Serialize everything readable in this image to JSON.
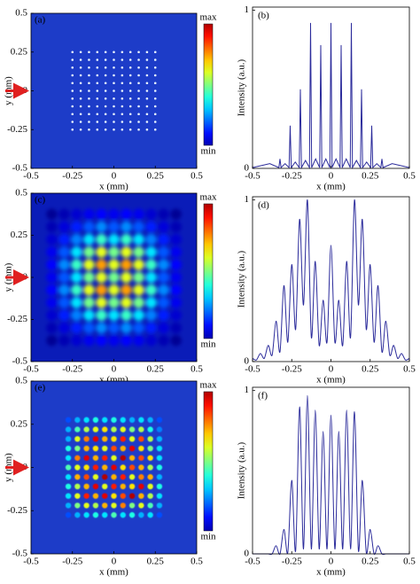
{
  "chart_data": [
    {
      "type": "heatmap",
      "label": "(a)",
      "xlabel": "x (mm)",
      "ylabel": "y (mm)",
      "xlim": [
        -0.5,
        0.5
      ],
      "ylim": [
        -0.5,
        0.5
      ],
      "xticks": [
        -0.5,
        -0.25,
        0,
        0.25,
        0.5
      ],
      "yticks": [
        -0.5,
        -0.25,
        0,
        0.25,
        0.5
      ],
      "colorbar_labels": [
        "max",
        "min"
      ],
      "background": "#1d3cc8",
      "x": [
        -0.25,
        -0.2,
        -0.15,
        -0.1,
        -0.05,
        0,
        0.05,
        0.1,
        0.15,
        0.2,
        0.25
      ],
      "y": [
        -0.25,
        -0.2,
        -0.15,
        -0.1,
        -0.05,
        0,
        0.05,
        0.1,
        0.15,
        0.2,
        0.25
      ],
      "z": [
        [
          0.35,
          0.35,
          0.35,
          0.35,
          0.35,
          0.35,
          0.35,
          0.35,
          0.35,
          0.35,
          0.35
        ],
        [
          0.35,
          0.5,
          0.5,
          0.5,
          0.5,
          0.5,
          0.5,
          0.5,
          0.5,
          0.5,
          0.35
        ],
        [
          0.35,
          0.5,
          0.5,
          0.5,
          0.5,
          0.5,
          0.5,
          0.5,
          0.5,
          0.5,
          0.35
        ],
        [
          0.35,
          0.5,
          0.5,
          0.5,
          0.5,
          0.5,
          0.5,
          0.5,
          0.5,
          0.5,
          0.35
        ],
        [
          0.35,
          0.5,
          0.5,
          0.5,
          0.5,
          0.5,
          0.5,
          0.5,
          0.5,
          0.5,
          0.35
        ],
        [
          0.35,
          0.5,
          0.5,
          0.5,
          0.5,
          0.5,
          0.5,
          0.5,
          0.5,
          0.5,
          0.35
        ],
        [
          0.35,
          0.5,
          0.5,
          0.5,
          0.5,
          0.5,
          0.5,
          0.5,
          0.5,
          0.5,
          0.35
        ],
        [
          0.35,
          0.5,
          0.5,
          0.5,
          0.5,
          0.5,
          0.5,
          0.5,
          0.5,
          0.5,
          0.35
        ],
        [
          0.35,
          0.5,
          0.5,
          0.5,
          0.5,
          0.5,
          0.5,
          0.5,
          0.5,
          0.5,
          0.35
        ],
        [
          0.35,
          0.5,
          0.5,
          0.5,
          0.5,
          0.5,
          0.5,
          0.5,
          0.5,
          0.5,
          0.35
        ],
        [
          0.35,
          0.35,
          0.35,
          0.35,
          0.35,
          0.35,
          0.35,
          0.35,
          0.35,
          0.35,
          0.35
        ]
      ]
    },
    {
      "type": "line",
      "label": "(b)",
      "xlabel": "x (mm)",
      "ylabel": "Intensity (a.u.)",
      "xlim": [
        -0.5,
        0.5
      ],
      "ylim": [
        0,
        1.02
      ],
      "xticks": [
        -0.5,
        -0.25,
        0,
        0.25,
        0.5
      ],
      "yticks": [
        0,
        1
      ],
      "color": "#2b2b9b",
      "x": [
        -0.5,
        -0.39,
        -0.332,
        -0.325,
        -0.318,
        -0.2925,
        -0.267,
        -0.26,
        -0.253,
        -0.2275,
        -0.202,
        -0.195,
        -0.188,
        -0.1625,
        -0.137,
        -0.13,
        -0.123,
        -0.0975,
        -0.072,
        -0.065,
        -0.058,
        -0.0325,
        -0.007,
        0,
        0.007,
        0.0325,
        0.058,
        0.065,
        0.072,
        0.0975,
        0.123,
        0.13,
        0.137,
        0.1625,
        0.188,
        0.195,
        0.202,
        0.2275,
        0.253,
        0.26,
        0.267,
        0.2925,
        0.318,
        0.325,
        0.332,
        0.39,
        0.5
      ],
      "values": [
        0.005,
        0.03,
        0.005,
        0.06,
        0.005,
        0.03,
        0.005,
        0.27,
        0.005,
        0.04,
        0.005,
        0.5,
        0.005,
        0.05,
        0.005,
        0.92,
        0.005,
        0.06,
        0.005,
        0.78,
        0.005,
        0.06,
        0.005,
        0.92,
        0.005,
        0.06,
        0.005,
        0.78,
        0.005,
        0.06,
        0.005,
        0.92,
        0.005,
        0.05,
        0.005,
        0.5,
        0.005,
        0.04,
        0.005,
        0.27,
        0.005,
        0.03,
        0.005,
        0.06,
        0.005,
        0.03,
        0.005
      ]
    },
    {
      "type": "heatmap",
      "label": "(c)",
      "xlabel": "x (mm)",
      "ylabel": "y (mm)",
      "xlim": [
        -0.5,
        0.5
      ],
      "ylim": [
        -0.5,
        0.5
      ],
      "xticks": [
        -0.5,
        -0.25,
        0,
        0.25,
        0.5
      ],
      "yticks": [
        -0.5,
        -0.25,
        0,
        0.25,
        0.5
      ],
      "colorbar_labels": [
        "max",
        "min"
      ],
      "background": "#0a1cb8",
      "x": [
        -0.375,
        -0.3,
        -0.225,
        -0.15,
        -0.075,
        0,
        0.075,
        0.15,
        0.225,
        0.3,
        0.375
      ],
      "y": [
        -0.375,
        -0.3,
        -0.225,
        -0.15,
        -0.075,
        0,
        0.075,
        0.15,
        0.225,
        0.3,
        0.375
      ],
      "z": [
        [
          0.02,
          0.05,
          0.08,
          0.11,
          0.13,
          0.11,
          0.13,
          0.11,
          0.08,
          0.05,
          0.02
        ],
        [
          0.05,
          0.09,
          0.15,
          0.21,
          0.26,
          0.21,
          0.26,
          0.21,
          0.15,
          0.09,
          0.05
        ],
        [
          0.08,
          0.15,
          0.25,
          0.35,
          0.43,
          0.35,
          0.43,
          0.35,
          0.25,
          0.15,
          0.08
        ],
        [
          0.11,
          0.21,
          0.35,
          0.49,
          0.6,
          0.49,
          0.6,
          0.49,
          0.35,
          0.21,
          0.11
        ],
        [
          0.13,
          0.26,
          0.43,
          0.6,
          0.72,
          0.6,
          0.72,
          0.6,
          0.43,
          0.26,
          0.13
        ],
        [
          0.11,
          0.21,
          0.35,
          0.49,
          0.6,
          0.49,
          0.6,
          0.49,
          0.35,
          0.21,
          0.11
        ],
        [
          0.13,
          0.26,
          0.43,
          0.6,
          0.72,
          0.6,
          0.72,
          0.6,
          0.43,
          0.26,
          0.13
        ],
        [
          0.11,
          0.21,
          0.35,
          0.49,
          0.6,
          0.49,
          0.6,
          0.49,
          0.35,
          0.21,
          0.11
        ],
        [
          0.08,
          0.15,
          0.25,
          0.35,
          0.43,
          0.35,
          0.43,
          0.35,
          0.25,
          0.15,
          0.08
        ],
        [
          0.05,
          0.09,
          0.15,
          0.21,
          0.26,
          0.21,
          0.26,
          0.21,
          0.15,
          0.09,
          0.05
        ],
        [
          0.02,
          0.05,
          0.08,
          0.11,
          0.13,
          0.11,
          0.13,
          0.11,
          0.08,
          0.05,
          0.02
        ]
      ]
    },
    {
      "type": "line",
      "label": "(d)",
      "xlabel": "x (mm)",
      "ylabel": "Intensity (a.u.)",
      "xlim": [
        -0.5,
        0.5
      ],
      "ylim": [
        0,
        1.02
      ],
      "xticks": [
        -0.5,
        -0.25,
        0,
        0.25,
        0.5
      ],
      "yticks": [
        0,
        1
      ],
      "color": "#2b2b9b",
      "x": [
        -0.5,
        -0.475,
        -0.45,
        -0.425,
        -0.4,
        -0.375,
        -0.35,
        -0.325,
        -0.3,
        -0.275,
        -0.25,
        -0.225,
        -0.2,
        -0.175,
        -0.15,
        -0.125,
        -0.1,
        -0.075,
        -0.05,
        -0.025,
        0,
        0.025,
        0.05,
        0.075,
        0.1,
        0.125,
        0.15,
        0.175,
        0.2,
        0.225,
        0.25,
        0.275,
        0.3,
        0.325,
        0.35,
        0.375,
        0.4,
        0.425,
        0.45,
        0.475,
        0.5
      ],
      "values": [
        0.02,
        0.01,
        0.05,
        0.02,
        0.1,
        0.04,
        0.25,
        0.06,
        0.47,
        0.12,
        0.6,
        0.2,
        0.88,
        0.35,
        1.0,
        0.15,
        0.62,
        0.1,
        0.38,
        0.12,
        0.72,
        0.12,
        0.38,
        0.1,
        0.62,
        0.15,
        1.0,
        0.35,
        0.88,
        0.2,
        0.6,
        0.12,
        0.47,
        0.06,
        0.25,
        0.04,
        0.1,
        0.02,
        0.05,
        0.01,
        0.02
      ]
    },
    {
      "type": "heatmap",
      "label": "(e)",
      "xlabel": "x (mm)",
      "ylabel": "y (mm)",
      "xlim": [
        -0.5,
        0.5
      ],
      "ylim": [
        -0.5,
        0.5
      ],
      "xticks": [
        -0.5,
        -0.25,
        0,
        0.25,
        0.5
      ],
      "yticks": [
        -0.5,
        -0.25,
        0,
        0.25,
        0.5
      ],
      "colorbar_labels": [
        "max",
        "min"
      ],
      "background": "#1d3cc8",
      "x": [
        -0.275,
        -0.22,
        -0.165,
        -0.11,
        -0.055,
        0,
        0.055,
        0.11,
        0.165,
        0.22,
        0.275
      ],
      "y": [
        -0.275,
        -0.22,
        -0.165,
        -0.11,
        -0.055,
        0,
        0.055,
        0.11,
        0.165,
        0.22,
        0.275
      ],
      "z": [
        [
          0.2,
          0.3,
          0.35,
          0.4,
          0.35,
          0.45,
          0.35,
          0.4,
          0.3,
          0.35,
          0.2
        ],
        [
          0.3,
          0.5,
          0.6,
          0.55,
          0.7,
          0.6,
          0.75,
          0.5,
          0.6,
          0.45,
          0.3
        ],
        [
          0.35,
          0.6,
          0.85,
          0.7,
          0.9,
          0.65,
          0.8,
          0.95,
          0.7,
          0.55,
          0.35
        ],
        [
          0.4,
          0.55,
          0.7,
          0.9,
          0.6,
          0.85,
          0.7,
          0.65,
          0.9,
          0.6,
          0.4
        ],
        [
          0.35,
          0.7,
          0.8,
          0.6,
          0.95,
          0.7,
          0.85,
          0.6,
          0.75,
          0.7,
          0.3
        ],
        [
          0.45,
          0.6,
          0.65,
          0.85,
          0.7,
          0.9,
          0.65,
          0.8,
          0.7,
          0.55,
          0.4
        ],
        [
          0.35,
          0.75,
          0.9,
          0.7,
          0.85,
          0.6,
          0.95,
          0.7,
          0.8,
          0.65,
          0.35
        ],
        [
          0.4,
          0.5,
          0.7,
          0.65,
          0.6,
          0.8,
          0.7,
          0.9,
          0.65,
          0.5,
          0.35
        ],
        [
          0.3,
          0.6,
          0.75,
          0.9,
          0.7,
          0.65,
          0.85,
          0.6,
          0.8,
          0.55,
          0.3
        ],
        [
          0.3,
          0.45,
          0.55,
          0.6,
          0.65,
          0.55,
          0.6,
          0.5,
          0.55,
          0.4,
          0.25
        ],
        [
          0.2,
          0.3,
          0.35,
          0.4,
          0.35,
          0.4,
          0.35,
          0.3,
          0.35,
          0.3,
          0.2
        ]
      ]
    },
    {
      "type": "line",
      "label": "(f)",
      "xlabel": "x (mm)",
      "ylabel": "Intensity (a.u.)",
      "xlim": [
        -0.5,
        0.5
      ],
      "ylim": [
        0,
        1.02
      ],
      "xticks": [
        -0.5,
        -0.25,
        0,
        0.25,
        0.5
      ],
      "yticks": [
        0,
        1
      ],
      "color": "#2b2b9b",
      "x": [
        -0.5,
        -0.475,
        -0.45,
        -0.425,
        -0.4,
        -0.375,
        -0.35,
        -0.325,
        -0.3,
        -0.275,
        -0.25,
        -0.225,
        -0.2,
        -0.175,
        -0.15,
        -0.125,
        -0.1,
        -0.075,
        -0.05,
        -0.025,
        0,
        0.025,
        0.05,
        0.075,
        0.1,
        0.125,
        0.15,
        0.175,
        0.2,
        0.225,
        0.25,
        0.275,
        0.3,
        0.325,
        0.35,
        0.375,
        0.4,
        0.425,
        0.45,
        0.475,
        0.5
      ],
      "values": [
        0,
        0,
        0,
        0,
        0,
        0,
        0.05,
        0,
        0.15,
        0.01,
        0.45,
        0.02,
        0.9,
        0.03,
        0.97,
        0.03,
        0.88,
        0.03,
        0.75,
        0.03,
        0.85,
        0.03,
        0.75,
        0.03,
        0.88,
        0.03,
        0.87,
        0.02,
        0.45,
        0.01,
        0.15,
        0,
        0.05,
        0,
        0,
        0,
        0,
        0,
        0,
        0,
        0
      ]
    }
  ]
}
